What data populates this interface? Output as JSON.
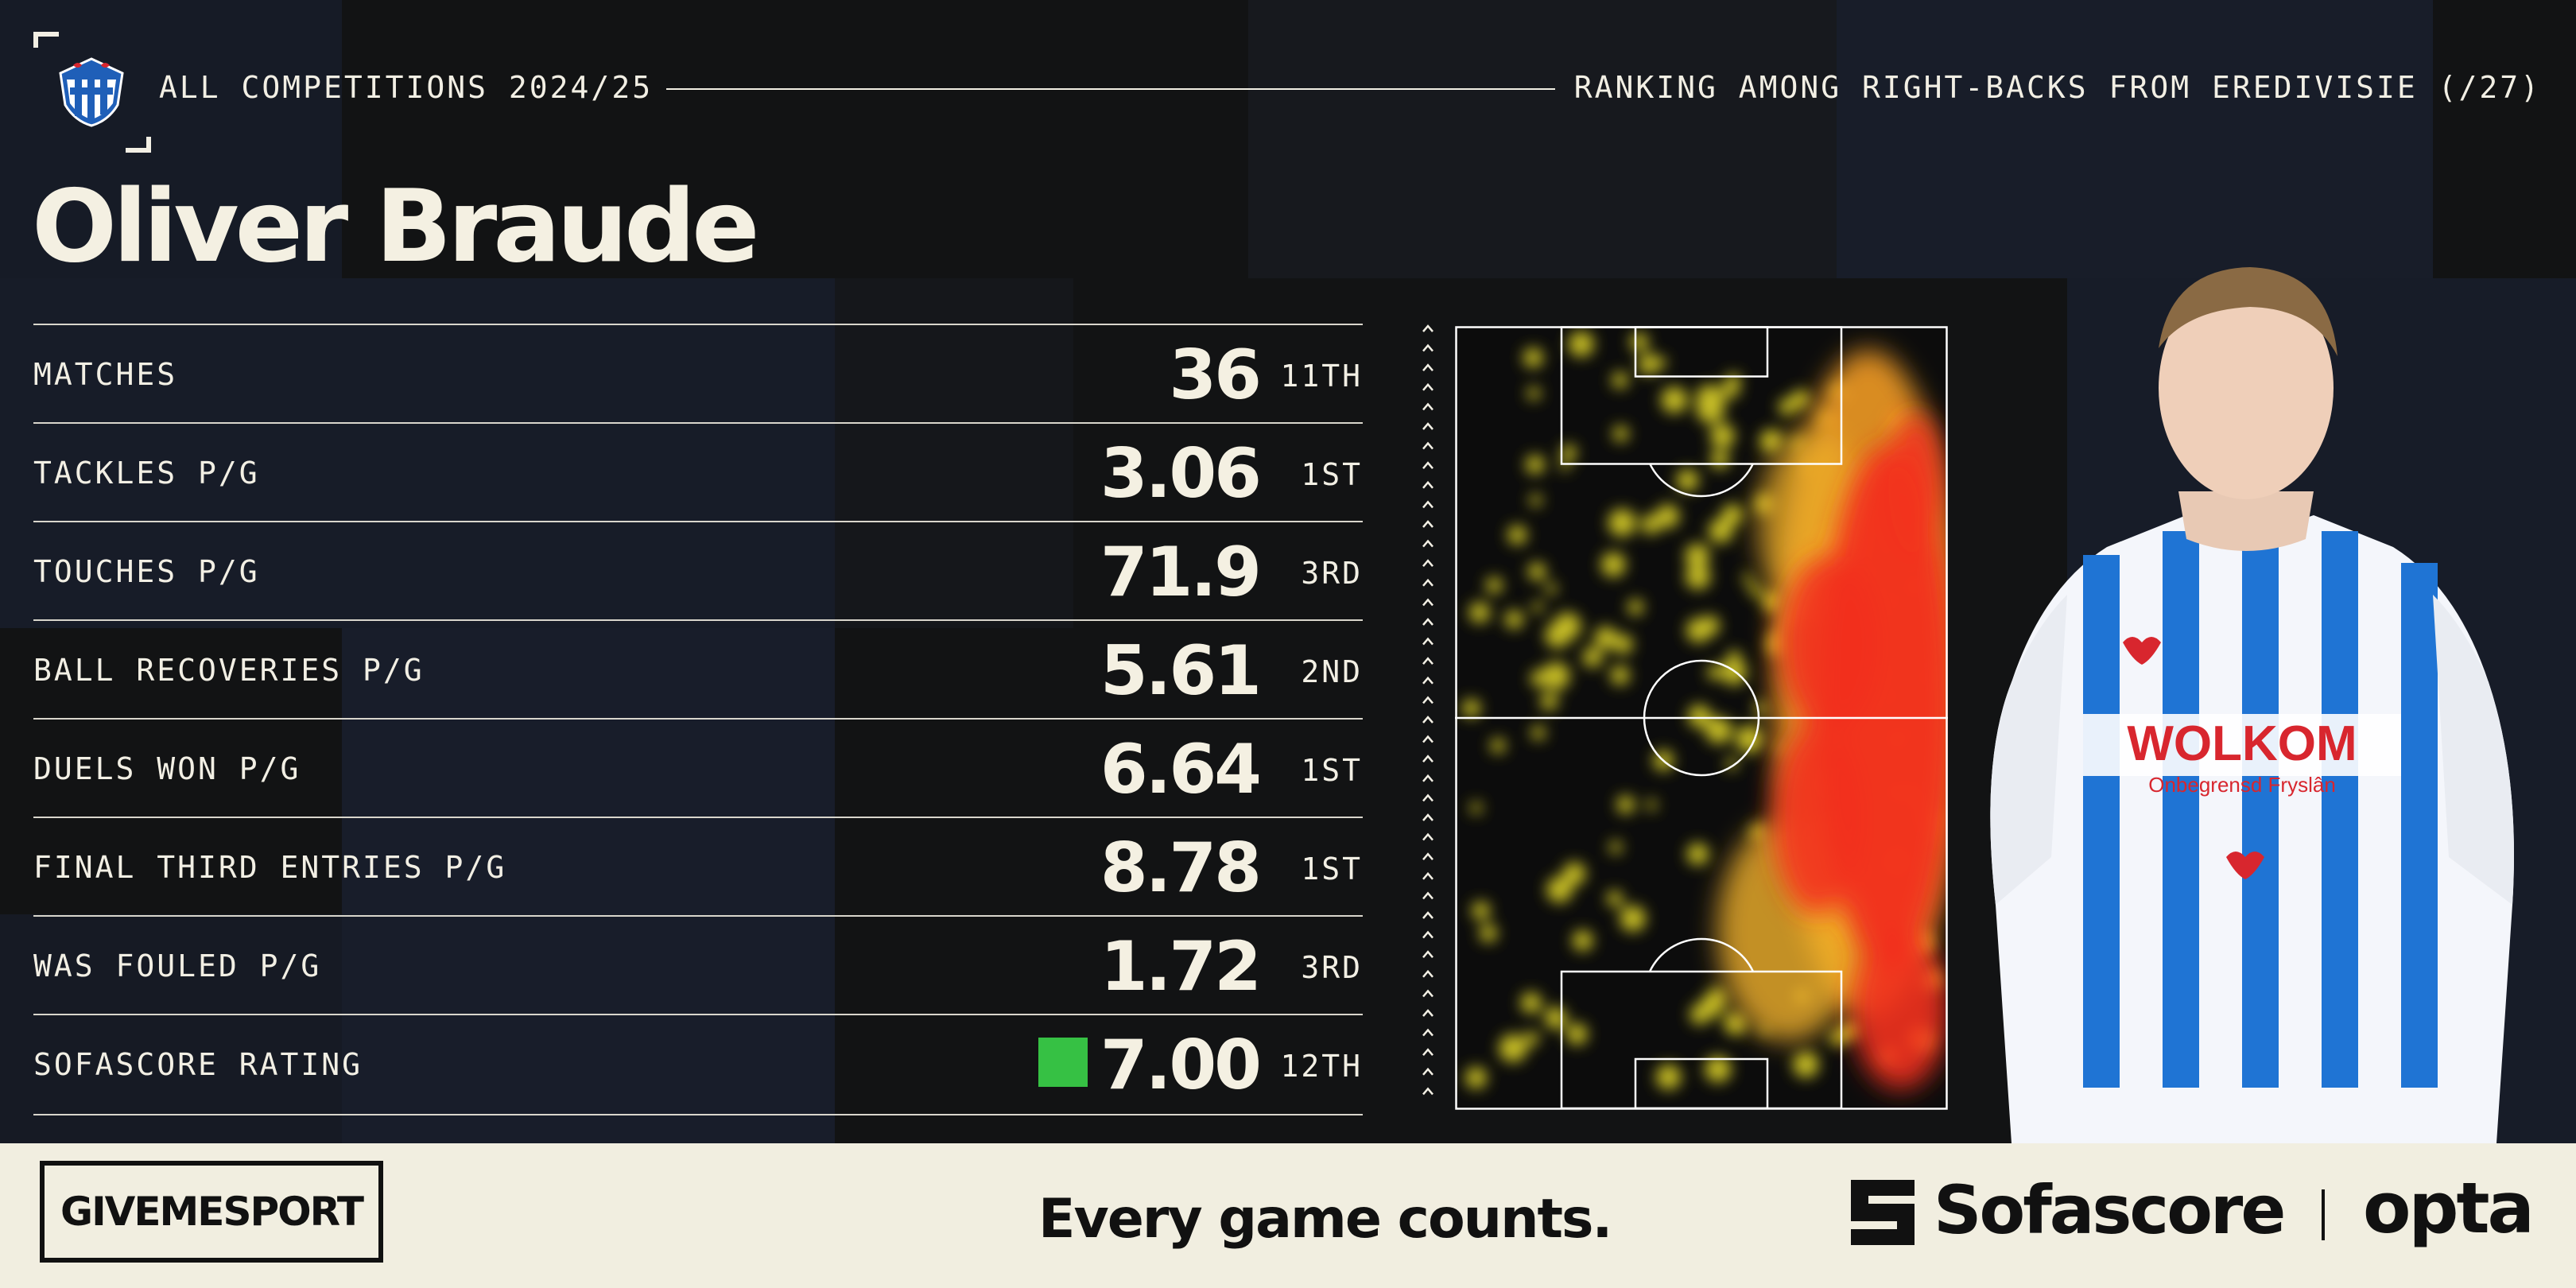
{
  "header": {
    "competition": "ALL COMPETITIONS 2024/25",
    "ranking_context": "RANKING AMONG RIGHT-BACKS FROM EREDIVISIE (/27)"
  },
  "player": {
    "name": "Oliver Braude"
  },
  "stats": [
    {
      "label": "MATCHES",
      "value": "36",
      "rank": "11TH"
    },
    {
      "label": "TACKLES P/G",
      "value": "3.06",
      "rank": "1ST"
    },
    {
      "label": "TOUCHES P/G",
      "value": "71.9",
      "rank": "3RD"
    },
    {
      "label": "BALL RECOVERIES P/G",
      "value": "5.61",
      "rank": "2ND"
    },
    {
      "label": "DUELS WON P/G",
      "value": "6.64",
      "rank": "1ST"
    },
    {
      "label": "FINAL THIRD ENTRIES P/G",
      "value": "8.78",
      "rank": "1ST"
    },
    {
      "label": "WAS FOULED P/G",
      "value": "1.72",
      "rank": "3RD"
    },
    {
      "label": "SOFASCORE RATING",
      "value": "7.00",
      "rank": "12TH",
      "rating_color": "#36c144"
    }
  ],
  "footer": {
    "publisher": "GIVEMESPORT",
    "tagline": "Every game counts.",
    "brand": "Sofascore",
    "partner": "opta"
  },
  "colors": {
    "background": "#121314",
    "text": "#f2efe4",
    "footer_bg": "#f1eee0",
    "heat_low": "#e8dd2a",
    "heat_high": "#f2301c",
    "kit_blue": "#1f74d4",
    "kit_red": "#d8262e"
  },
  "icons": [
    "heerenveen-crest-icon",
    "up-arrow-icon",
    "sofascore-logo-icon"
  ]
}
